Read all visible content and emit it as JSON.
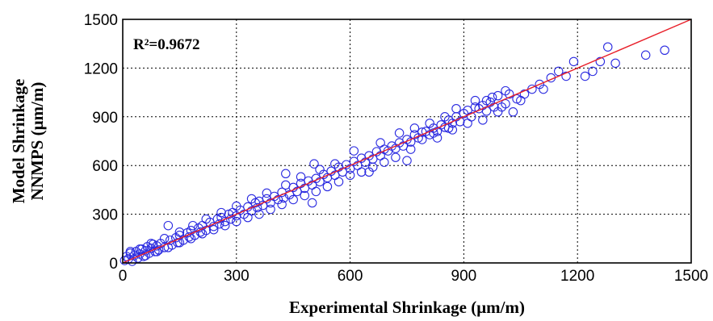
{
  "chart_data": {
    "type": "scatter",
    "annotation": "R²=0.9672",
    "xlabel": "Experimental Shrinkage (μm/m)",
    "ylabel_line1": "Model Shrinkage",
    "ylabel_line2": "NNMPS (μm/m)",
    "xlim": [
      0,
      1500
    ],
    "ylim": [
      0,
      1500
    ],
    "x_ticks": [
      0,
      300,
      600,
      900,
      1200,
      1500
    ],
    "y_ticks": [
      0,
      300,
      600,
      900,
      1200,
      1500
    ],
    "x_tick_labels": [
      "0",
      "300",
      "600",
      "900",
      "1200",
      "1500"
    ],
    "y_tick_labels": [
      "0",
      "300",
      "600",
      "900",
      "1200",
      "1500"
    ],
    "grid": true,
    "fit_line": {
      "x": [
        0,
        1500
      ],
      "y": [
        0,
        1500
      ]
    },
    "point_color": "#2a2ae0",
    "line_color": "#e8202a",
    "series": [
      {
        "points": [
          [
            5,
            15
          ],
          [
            10,
            40
          ],
          [
            15,
            25
          ],
          [
            20,
            60
          ],
          [
            25,
            10
          ],
          [
            30,
            45
          ],
          [
            35,
            70
          ],
          [
            40,
            30
          ],
          [
            45,
            55
          ],
          [
            50,
            85
          ],
          [
            55,
            40
          ],
          [
            60,
            75
          ],
          [
            65,
            100
          ],
          [
            70,
            60
          ],
          [
            75,
            90
          ],
          [
            80,
            115
          ],
          [
            85,
            70
          ],
          [
            90,
            105
          ],
          [
            95,
            80
          ],
          [
            100,
            120
          ],
          [
            110,
            95
          ],
          [
            120,
            230
          ],
          [
            125,
            140
          ],
          [
            130,
            110
          ],
          [
            140,
            155
          ],
          [
            145,
            125
          ],
          [
            150,
            170
          ],
          [
            160,
            140
          ],
          [
            170,
            185
          ],
          [
            175,
            160
          ],
          [
            180,
            200
          ],
          [
            190,
            170
          ],
          [
            200,
            215
          ],
          [
            205,
            190
          ],
          [
            210,
            230
          ],
          [
            220,
            200
          ],
          [
            230,
            250
          ],
          [
            240,
            225
          ],
          [
            250,
            270
          ],
          [
            255,
            240
          ],
          [
            260,
            280
          ],
          [
            270,
            255
          ],
          [
            280,
            300
          ],
          [
            285,
            270
          ],
          [
            290,
            310
          ],
          [
            300,
            290
          ],
          [
            310,
            325
          ],
          [
            320,
            300
          ],
          [
            330,
            345
          ],
          [
            340,
            320
          ],
          [
            350,
            370
          ],
          [
            355,
            340
          ],
          [
            360,
            380
          ],
          [
            370,
            355
          ],
          [
            380,
            395
          ],
          [
            390,
            370
          ],
          [
            400,
            410
          ],
          [
            410,
            390
          ],
          [
            420,
            435
          ],
          [
            425,
            400
          ],
          [
            430,
            550
          ],
          [
            440,
            420
          ],
          [
            450,
            465
          ],
          [
            460,
            440
          ],
          [
            470,
            490
          ],
          [
            480,
            460
          ],
          [
            490,
            505
          ],
          [
            500,
            480
          ],
          [
            505,
            610
          ],
          [
            510,
            520
          ],
          [
            520,
            500
          ],
          [
            530,
            545
          ],
          [
            540,
            525
          ],
          [
            550,
            565
          ],
          [
            560,
            540
          ],
          [
            570,
            590
          ],
          [
            580,
            560
          ],
          [
            590,
            605
          ],
          [
            600,
            580
          ],
          [
            610,
            625
          ],
          [
            620,
            600
          ],
          [
            630,
            645
          ],
          [
            640,
            620
          ],
          [
            650,
            660
          ],
          [
            660,
            640
          ],
          [
            670,
            685
          ],
          [
            680,
            660
          ],
          [
            690,
            700
          ],
          [
            700,
            690
          ],
          [
            710,
            720
          ],
          [
            720,
            705
          ],
          [
            730,
            740
          ],
          [
            740,
            720
          ],
          [
            750,
            760
          ],
          [
            760,
            745
          ],
          [
            770,
            790
          ],
          [
            780,
            770
          ],
          [
            790,
            805
          ],
          [
            800,
            810
          ],
          [
            810,
            790
          ],
          [
            820,
            830
          ],
          [
            830,
            810
          ],
          [
            840,
            850
          ],
          [
            850,
            835
          ],
          [
            860,
            880
          ],
          [
            870,
            860
          ],
          [
            880,
            900
          ],
          [
            890,
            870
          ],
          [
            900,
            920
          ],
          [
            910,
            940
          ],
          [
            920,
            900
          ],
          [
            930,
            960
          ],
          [
            940,
            950
          ],
          [
            950,
            970
          ],
          [
            960,
            935
          ],
          [
            970,
            990
          ],
          [
            975,
            1020
          ],
          [
            980,
            960
          ],
          [
            1000,
            960
          ],
          [
            1010,
            980
          ],
          [
            1020,
            1040
          ],
          [
            1030,
            930
          ],
          [
            1040,
            1010
          ],
          [
            1060,
            1040
          ],
          [
            1080,
            1070
          ],
          [
            1100,
            1100
          ],
          [
            1130,
            1140
          ],
          [
            1150,
            1180
          ],
          [
            1190,
            1240
          ],
          [
            1220,
            1150
          ],
          [
            1240,
            1180
          ],
          [
            1260,
            1240
          ],
          [
            1280,
            1330
          ],
          [
            1300,
            1230
          ],
          [
            1380,
            1280
          ],
          [
            1430,
            1310
          ],
          [
            750,
            630
          ],
          [
            720,
            650
          ],
          [
            690,
            620
          ],
          [
            660,
            590
          ],
          [
            630,
            560
          ],
          [
            600,
            540
          ],
          [
            570,
            500
          ],
          [
            540,
            470
          ],
          [
            510,
            440
          ],
          [
            480,
            415
          ],
          [
            450,
            390
          ],
          [
            420,
            360
          ],
          [
            390,
            330
          ],
          [
            360,
            300
          ],
          [
            330,
            280
          ],
          [
            300,
            255
          ],
          [
            270,
            230
          ],
          [
            240,
            205
          ],
          [
            210,
            180
          ],
          [
            180,
            150
          ],
          [
            150,
            125
          ],
          [
            120,
            95
          ],
          [
            90,
            70
          ],
          [
            60,
            45
          ],
          [
            500,
            370
          ],
          [
            650,
            560
          ],
          [
            610,
            690
          ],
          [
            560,
            610
          ],
          [
            520,
            575
          ],
          [
            470,
            530
          ],
          [
            430,
            480
          ],
          [
            380,
            430
          ],
          [
            340,
            395
          ],
          [
            300,
            350
          ],
          [
            260,
            310
          ],
          [
            220,
            270
          ],
          [
            185,
            230
          ],
          [
            150,
            190
          ],
          [
            110,
            150
          ],
          [
            75,
            120
          ],
          [
            45,
            85
          ],
          [
            20,
            70
          ],
          [
            680,
            740
          ],
          [
            730,
            800
          ],
          [
            770,
            830
          ],
          [
            810,
            860
          ],
          [
            850,
            900
          ],
          [
            880,
            950
          ],
          [
            930,
            1000
          ],
          [
            960,
            1000
          ],
          [
            990,
            930
          ],
          [
            1050,
            1000
          ],
          [
            1110,
            1070
          ],
          [
            1170,
            1150
          ],
          [
            830,
            770
          ],
          [
            870,
            820
          ],
          [
            910,
            860
          ],
          [
            950,
            880
          ],
          [
            990,
            1030
          ],
          [
            1010,
            1060
          ],
          [
            860,
            830
          ],
          [
            820,
            800
          ],
          [
            790,
            760
          ],
          [
            760,
            700
          ]
        ]
      }
    ]
  }
}
